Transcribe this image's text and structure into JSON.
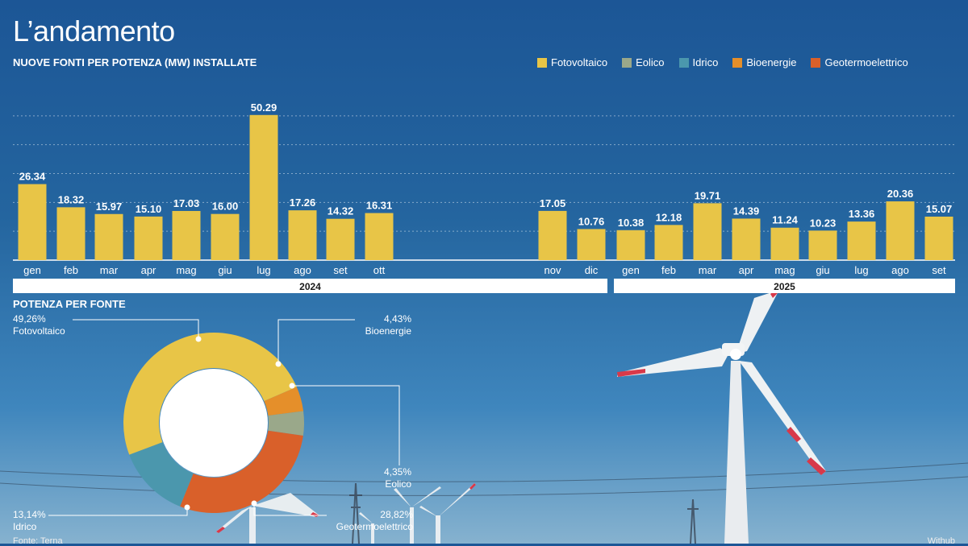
{
  "header": {
    "title": "L’andamento",
    "subtitle": "NUOVE FONTI PER POTENZA (MW) INSTALLATE"
  },
  "legend": [
    {
      "label": "Fotovoltaico",
      "color": "#e8c547"
    },
    {
      "label": "Eolico",
      "color": "#9aa88a"
    },
    {
      "label": "Idrico",
      "color": "#4b97ad"
    },
    {
      "label": "Bioenergie",
      "color": "#e58f2a"
    },
    {
      "label": "Geotermoelettrico",
      "color": "#d9602a"
    }
  ],
  "chart_data": [
    {
      "type": "bar",
      "title": "NUOVE FONTI PER POTENZA (MW) INSTALLATE",
      "ylim": [
        0,
        60
      ],
      "grid": true,
      "legend_position": "top-right",
      "groups": [
        {
          "year": "2024",
          "categories": [
            "gen",
            "feb",
            "mar",
            "apr",
            "mag",
            "giu",
            "lug",
            "ago",
            "set",
            "ott",
            "nov",
            "dic"
          ],
          "values": [
            26.34,
            18.32,
            15.97,
            15.1,
            17.03,
            16.0,
            50.29,
            17.26,
            14.32,
            16.31,
            17.05,
            10.76
          ],
          "labels": [
            "26.34",
            "18.32",
            "15.97",
            "15.10",
            "17.03",
            "16.00",
            "50.29",
            "17.26",
            "14.32",
            "16.31",
            "17.05",
            "10.76"
          ]
        },
        {
          "year": "2025",
          "categories": [
            "gen",
            "feb",
            "mar",
            "apr",
            "mag",
            "giu",
            "lug",
            "ago",
            "set"
          ],
          "values": [
            10.38,
            12.18,
            19.71,
            14.39,
            11.24,
            10.23,
            13.36,
            20.36,
            15.07
          ],
          "labels": [
            "10.38",
            "12.18",
            "19.71",
            "14.39",
            "11.24",
            "10.23",
            "13.36",
            "20.36",
            "15.07"
          ]
        }
      ]
    },
    {
      "type": "pie",
      "title": "POTENZA PER FONTE",
      "slices": [
        {
          "name": "Fotovoltaico",
          "value": 49.26,
          "label": "49,26%",
          "color": "#e8c547"
        },
        {
          "name": "Bioenergie",
          "value": 4.43,
          "label": "4,43%",
          "color": "#e58f2a"
        },
        {
          "name": "Eolico",
          "value": 4.35,
          "label": "4,35%",
          "color": "#9aa88a"
        },
        {
          "name": "Geotermoelettrico",
          "value": 28.82,
          "label": "28,82%",
          "color": "#d9602a"
        },
        {
          "name": "Idrico",
          "value": 13.14,
          "label": "13,14%",
          "color": "#4b97ad"
        }
      ]
    }
  ],
  "footer": {
    "source": "Fonte: Terna",
    "credit": "Withub"
  }
}
